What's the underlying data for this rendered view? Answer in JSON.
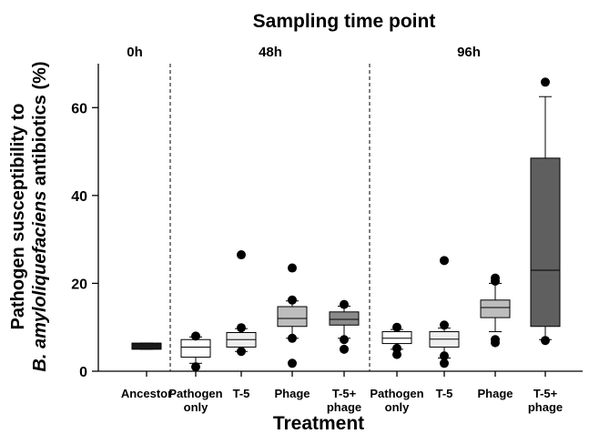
{
  "chart_data": {
    "type": "box",
    "title": "Sampling time point",
    "xlabel": "Treatment",
    "ylabel_line1": "Pathogen susceptibility to",
    "ylabel_line2_italic": "B. amyloliquefaciens",
    "ylabel_line2_rest": " antibiotics (%)",
    "ylim": [
      0,
      70
    ],
    "yticks": [
      0,
      20,
      40,
      60
    ],
    "timepoints": [
      {
        "label": "0h",
        "groups": [
          0
        ]
      },
      {
        "label": "48h",
        "groups": [
          1,
          2,
          3,
          4
        ]
      },
      {
        "label": "96h",
        "groups": [
          5,
          6,
          7,
          8
        ]
      }
    ],
    "groups": [
      {
        "label": [
          "Ancestor"
        ],
        "fill": "#1a1a1a",
        "q1": 5.0,
        "median": 5.8,
        "q3": 6.4,
        "whisker_low": 5.0,
        "whisker_high": 6.4,
        "outliers": []
      },
      {
        "label": [
          "Pathogen",
          "only"
        ],
        "fill": "#ffffff",
        "q1": 3.2,
        "median": 5.5,
        "q3": 7.2,
        "whisker_low": 1.8,
        "whisker_high": 7.8,
        "outliers": [
          8.0,
          1.0
        ]
      },
      {
        "label": [
          "T-5"
        ],
        "fill": "#eeeeee",
        "q1": 5.5,
        "median": 7.2,
        "q3": 8.8,
        "whisker_low": 4.5,
        "whisker_high": 9.7,
        "outliers": [
          26.5,
          9.9,
          4.5
        ]
      },
      {
        "label": [
          "Phage"
        ],
        "fill": "#bdbdbd",
        "q1": 10.2,
        "median": 12.0,
        "q3": 14.7,
        "whisker_low": 7.5,
        "whisker_high": 16.0,
        "outliers": [
          23.5,
          16.2,
          7.5,
          1.8
        ]
      },
      {
        "label": [
          "T-5+",
          "phage"
        ],
        "fill": "#8a8a8a",
        "q1": 10.5,
        "median": 11.8,
        "q3": 13.5,
        "whisker_low": 7.5,
        "whisker_high": 14.8,
        "outliers": [
          15.2,
          7.2,
          5.0
        ]
      },
      {
        "label": [
          "Pathogen",
          "only"
        ],
        "fill": "#ffffff",
        "q1": 6.3,
        "median": 7.5,
        "q3": 9.0,
        "whisker_low": 5.0,
        "whisker_high": 9.5,
        "outliers": [
          10.0,
          5.2,
          3.8
        ]
      },
      {
        "label": [
          "T-5"
        ],
        "fill": "#eeeeee",
        "q1": 5.5,
        "median": 7.3,
        "q3": 9.0,
        "whisker_low": 3.0,
        "whisker_high": 9.8,
        "outliers": [
          25.2,
          10.5,
          3.5,
          1.8
        ]
      },
      {
        "label": [
          "Phage"
        ],
        "fill": "#bdbdbd",
        "q1": 12.2,
        "median": 14.5,
        "q3": 16.2,
        "whisker_low": 9.0,
        "whisker_high": 20.0,
        "outliers": [
          21.2,
          20.5,
          7.2,
          6.5
        ]
      },
      {
        "label": [
          "T-5+",
          "phage"
        ],
        "fill": "#5f5f5f",
        "q1": 10.2,
        "median": 23.0,
        "q3": 48.5,
        "whisker_low": 7.2,
        "whisker_high": 62.5,
        "outliers": [
          65.8,
          7.0
        ]
      }
    ]
  }
}
